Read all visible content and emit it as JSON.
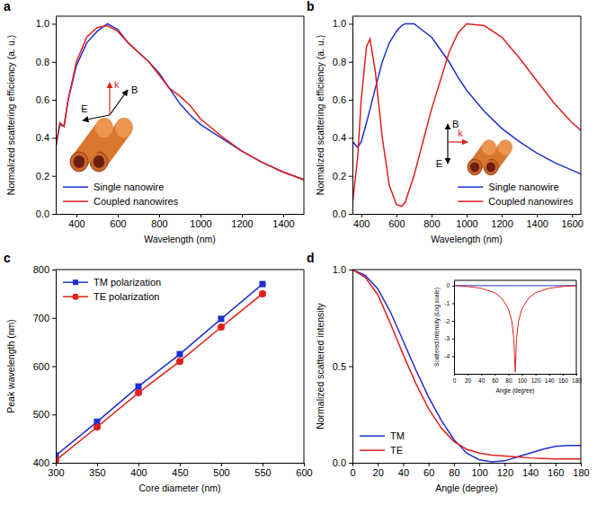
{
  "chart_data": [
    {
      "panel": "a",
      "type": "line",
      "xlabel": "Wavelength (nm)",
      "ylabel": "Normalized scattering efficiency (a. u.)",
      "xlim": [
        300,
        1500
      ],
      "ylim": [
        0,
        1.04
      ],
      "xticks": [
        400,
        600,
        800,
        1000,
        1200,
        1400
      ],
      "yticks": [
        {
          "value": 0,
          "label": "0.0"
        },
        0.2,
        0.4,
        0.6,
        0.8,
        {
          "value": 1,
          "label": "1.0"
        }
      ],
      "legend": "lower left",
      "annotations": [
        "E",
        "B",
        "k"
      ],
      "x": [
        300,
        320,
        340,
        360,
        400,
        450,
        500,
        550,
        600,
        650,
        700,
        750,
        800,
        850,
        900,
        950,
        1000,
        1100,
        1200,
        1300,
        1400,
        1500
      ],
      "series": [
        {
          "name": "Single nanowire",
          "color": "#1f2fd0",
          "values": [
            0.35,
            0.47,
            0.46,
            0.6,
            0.78,
            0.9,
            0.96,
            1.0,
            0.97,
            0.9,
            0.85,
            0.8,
            0.74,
            0.66,
            0.58,
            0.52,
            0.47,
            0.4,
            0.33,
            0.27,
            0.22,
            0.18
          ]
        },
        {
          "name": "Coupled nanowires",
          "color": "#e0201a",
          "values": [
            0.35,
            0.48,
            0.46,
            0.6,
            0.8,
            0.93,
            0.98,
            0.99,
            0.96,
            0.9,
            0.85,
            0.8,
            0.73,
            0.66,
            0.62,
            0.57,
            0.5,
            0.41,
            0.33,
            0.27,
            0.22,
            0.18
          ]
        }
      ]
    },
    {
      "panel": "b",
      "type": "line",
      "xlabel": "Wavelength (nm)",
      "ylabel": "Normalized scattering efficiency (a. u.)",
      "xlim": [
        350,
        1650
      ],
      "ylim": [
        0,
        1.04
      ],
      "xticks": [
        400,
        600,
        800,
        1000,
        1200,
        1400,
        1600
      ],
      "yticks": [
        {
          "value": 0,
          "label": "0.0"
        },
        0.2,
        0.4,
        0.6,
        0.8,
        {
          "value": 1,
          "label": "1.0"
        }
      ],
      "legend": "lower right",
      "annotations": [
        "E",
        "B",
        "k"
      ],
      "x": [
        350,
        380,
        400,
        430,
        450,
        480,
        520,
        560,
        600,
        630,
        650,
        700,
        800,
        900,
        950,
        1000,
        1100,
        1200,
        1300,
        1400,
        1500,
        1600,
        1650
      ],
      "series": [
        {
          "name": "Single nanowire",
          "color": "#1f2fd0",
          "values": [
            0.38,
            0.35,
            0.38,
            0.48,
            0.55,
            0.66,
            0.8,
            0.9,
            0.96,
            0.99,
            1.0,
            1.0,
            0.93,
            0.8,
            0.72,
            0.65,
            0.54,
            0.45,
            0.38,
            0.32,
            0.27,
            0.23,
            0.21
          ]
        },
        {
          "name": "Coupled nanowires",
          "color": "#e0201a",
          "values": [
            0.05,
            0.3,
            0.6,
            0.88,
            0.92,
            0.75,
            0.4,
            0.15,
            0.05,
            0.04,
            0.06,
            0.2,
            0.55,
            0.85,
            0.95,
            1.0,
            0.99,
            0.93,
            0.82,
            0.7,
            0.58,
            0.48,
            0.44
          ]
        }
      ]
    },
    {
      "panel": "c",
      "type": "line",
      "xlabel": "Core diameter (nm)",
      "ylabel": "Peak wavelength (nm)",
      "xlim": [
        300,
        600
      ],
      "ylim": [
        400,
        800
      ],
      "xticks": [
        300,
        350,
        400,
        450,
        500,
        550,
        600
      ],
      "yticks": [
        400,
        500,
        600,
        700,
        800
      ],
      "legend": "upper left",
      "x": [
        300,
        350,
        400,
        450,
        500,
        550
      ],
      "series": [
        {
          "name": "TM polarization",
          "color": "#1f2fd0",
          "marker": "square",
          "values": [
            415,
            485,
            558,
            625,
            698,
            770
          ]
        },
        {
          "name": "TE polarization",
          "color": "#e0201a",
          "marker": "circle",
          "values": [
            405,
            474,
            545,
            610,
            681,
            750
          ]
        }
      ]
    },
    {
      "panel": "d",
      "type": "line",
      "xlabel": "Angle (degree)",
      "ylabel": "Normalized scattered intensity",
      "xlim": [
        0,
        180
      ],
      "ylim": [
        0,
        1
      ],
      "xticks": [
        0,
        20,
        40,
        60,
        80,
        100,
        120,
        140,
        160,
        180
      ],
      "yticks": [
        {
          "value": 0,
          "label": "0.0"
        },
        0.5,
        {
          "value": 1,
          "label": "1.0"
        }
      ],
      "legend": "lower left",
      "x": [
        0,
        10,
        20,
        30,
        40,
        50,
        60,
        70,
        80,
        90,
        100,
        110,
        120,
        130,
        140,
        150,
        160,
        170,
        180
      ],
      "series": [
        {
          "name": "TM",
          "color": "#1f2fd0",
          "values": [
            1.0,
            0.97,
            0.9,
            0.78,
            0.63,
            0.48,
            0.34,
            0.22,
            0.12,
            0.05,
            0.015,
            0.005,
            0.01,
            0.03,
            0.05,
            0.07,
            0.085,
            0.09,
            0.09
          ]
        },
        {
          "name": "TE",
          "color": "#e0201a",
          "values": [
            1.0,
            0.96,
            0.87,
            0.72,
            0.56,
            0.41,
            0.28,
            0.18,
            0.11,
            0.07,
            0.05,
            0.04,
            0.035,
            0.03,
            0.025,
            0.022,
            0.02,
            0.02,
            0.02
          ]
        }
      ]
    },
    {
      "type": "line",
      "xlabel": "Angle (degree)",
      "ylabel": "Scattered Intensity (Log scale)",
      "xlim": [
        0,
        180
      ],
      "ylim": [
        -5,
        0.3
      ],
      "xticks": [
        0,
        20,
        40,
        60,
        80,
        100,
        120,
        140,
        160,
        180
      ],
      "yticks": [
        -4,
        -3,
        -2,
        -1,
        0
      ],
      "x": [
        0,
        20,
        40,
        60,
        70,
        80,
        85,
        88,
        90,
        92,
        95,
        100,
        110,
        120,
        140,
        160,
        180
      ],
      "series": [
        {
          "color": "#1f2fd0",
          "values": [
            0,
            0,
            0,
            0,
            0,
            0,
            0,
            0,
            0,
            0,
            0,
            0,
            0,
            0,
            0,
            0,
            0
          ]
        },
        {
          "color": "#e0201a",
          "values": [
            0,
            -0.05,
            -0.15,
            -0.4,
            -0.7,
            -1.3,
            -2,
            -3,
            -4.9,
            -3,
            -2,
            -1.3,
            -0.7,
            -0.4,
            -0.15,
            -0.05,
            0
          ]
        }
      ]
    }
  ]
}
